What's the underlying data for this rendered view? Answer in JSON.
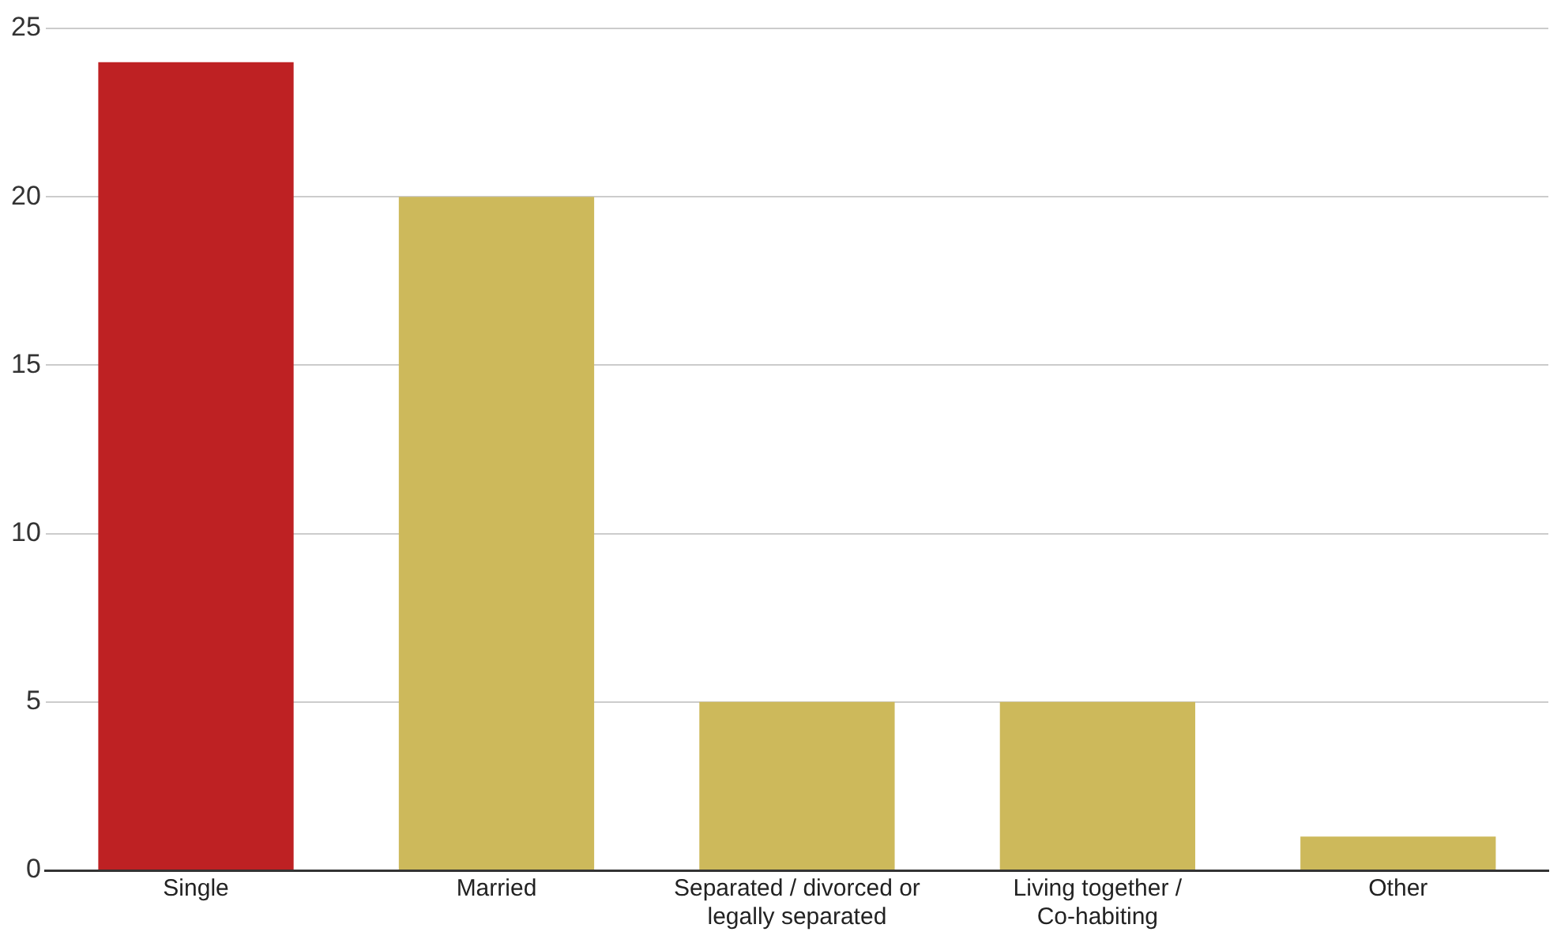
{
  "chart_data": {
    "type": "bar",
    "categories": [
      "Single",
      "Married",
      "Separated / divorced or legally separated",
      "Living together / Co-habiting",
      "Other"
    ],
    "values": [
      24,
      20,
      5,
      5,
      1
    ],
    "colors": [
      "#be2123",
      "#cdb95b",
      "#cdb95b",
      "#cdb95b",
      "#cdb95b"
    ],
    "ylim": [
      0,
      25
    ],
    "yticks": [
      0,
      5,
      10,
      15,
      20,
      25
    ],
    "grid": "y",
    "legend": false
  }
}
